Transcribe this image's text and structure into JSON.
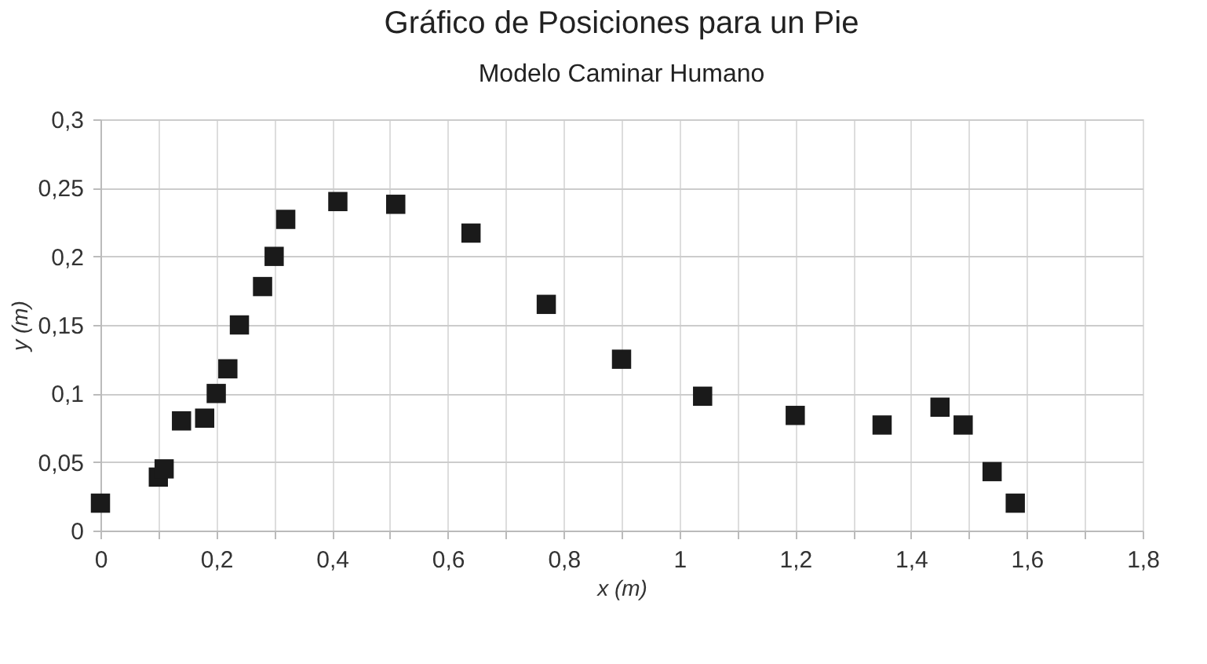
{
  "chart_data": {
    "type": "scatter",
    "title": "Gráfico de Posiciones para un Pie",
    "subtitle": "Modelo Caminar Humano",
    "xlabel": "x (m)",
    "ylabel": "y (m)",
    "x": [
      0,
      0.1,
      0.11,
      0.14,
      0.18,
      0.2,
      0.22,
      0.24,
      0.28,
      0.3,
      0.32,
      0.41,
      0.51,
      0.64,
      0.77,
      0.9,
      1.04,
      1.2,
      1.35,
      1.45,
      1.49,
      1.54,
      1.58
    ],
    "series": [
      {
        "color": "#1a1a1a",
        "values": [
          0.02,
          0.039,
          0.045,
          0.08,
          0.082,
          0.1,
          0.118,
          0.15,
          0.178,
          0.2,
          0.227,
          0.24,
          0.238,
          0.217,
          0.165,
          0.125,
          0.098,
          0.084,
          0.077,
          0.09,
          0.077,
          0.043,
          0.02
        ]
      }
    ],
    "xlim": [
      0,
      1.8
    ],
    "ylim": [
      0,
      0.3
    ],
    "xticks": [
      {
        "value": 0,
        "label": "0"
      },
      {
        "value": 0.1,
        "label": null
      },
      {
        "value": 0.2,
        "label": "0,2"
      },
      {
        "value": 0.3,
        "label": null
      },
      {
        "value": 0.4,
        "label": "0,4"
      },
      {
        "value": 0.5,
        "label": null
      },
      {
        "value": 0.6,
        "label": "0,6"
      },
      {
        "value": 0.7,
        "label": null
      },
      {
        "value": 0.8,
        "label": "0,8"
      },
      {
        "value": 0.9,
        "label": null
      },
      {
        "value": 1,
        "label": "1"
      },
      {
        "value": 1.1,
        "label": null
      },
      {
        "value": 1.2,
        "label": "1,2"
      },
      {
        "value": 1.3,
        "label": null
      },
      {
        "value": 1.4,
        "label": "1,4"
      },
      {
        "value": 1.5,
        "label": null
      },
      {
        "value": 1.6,
        "label": "1,6"
      },
      {
        "value": 1.7,
        "label": null
      },
      {
        "value": 1.8,
        "label": "1,8"
      }
    ],
    "yticks": [
      {
        "value": 0,
        "label": "0"
      },
      {
        "value": 0.05,
        "label": "0,05"
      },
      {
        "value": 0.1,
        "label": "0,1"
      },
      {
        "value": 0.15,
        "label": "0,15"
      },
      {
        "value": 0.2,
        "label": "0,2"
      },
      {
        "value": 0.25,
        "label": "0,25"
      },
      {
        "value": 0.3,
        "label": "0,3"
      }
    ],
    "grid": true,
    "marker": "square"
  }
}
